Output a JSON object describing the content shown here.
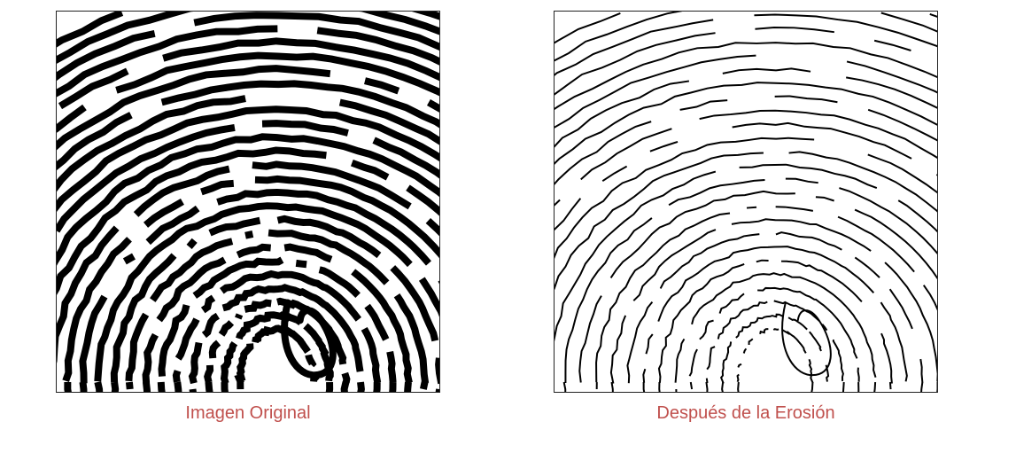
{
  "figures": [
    {
      "caption": "Imagen Original",
      "image_description_icon": "fingerprint-original-icon"
    },
    {
      "caption": "Después de la Erosión",
      "image_description_icon": "fingerprint-eroded-icon"
    }
  ],
  "colors": {
    "caption_color": "#c0504d",
    "ridge_color": "#000000",
    "background": "#ffffff"
  }
}
